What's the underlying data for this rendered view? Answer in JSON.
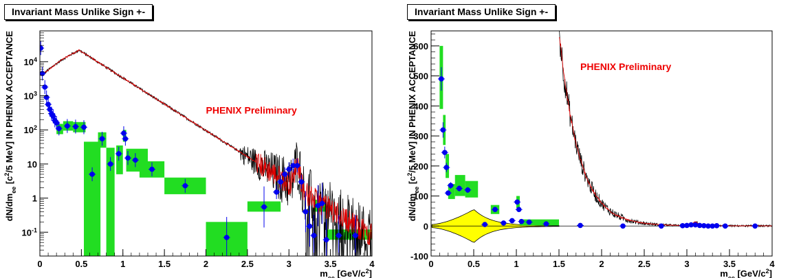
{
  "chart_data": [
    {
      "type": "scatter",
      "title": "Invariant Mass Unlike Sign +-",
      "xlabel": "m_ee [GeV/c^2]",
      "ylabel": "dN/dm_ee [c^2/5 MeV] IN PHENIX ACCEPTANCE",
      "log_y": true,
      "xlim": [
        0,
        4
      ],
      "ylim": [
        0.02,
        80000
      ],
      "x_ticks": [
        {
          "v": 0,
          "label": "0"
        },
        {
          "v": 0.5,
          "label": "0.5"
        },
        {
          "v": 1,
          "label": "1"
        },
        {
          "v": 1.5,
          "label": "1.5"
        },
        {
          "v": 2,
          "label": "2"
        },
        {
          "v": 2.5,
          "label": "2.5"
        },
        {
          "v": 3,
          "label": "3"
        },
        {
          "v": 3.5,
          "label": "3.5"
        },
        {
          "v": 4,
          "label": "4"
        }
      ],
      "y_ticks": [
        {
          "v": 0.1,
          "label": "10^-1"
        },
        {
          "v": 1,
          "label": "1"
        },
        {
          "v": 10,
          "label": "10"
        },
        {
          "v": 100,
          "label": "10^2"
        },
        {
          "v": 1000,
          "label": "10^3"
        },
        {
          "v": 10000,
          "label": "10^4"
        }
      ],
      "annotation": "PHENIX Preliminary",
      "colors": {
        "points": "#0000ee",
        "boxes": "#22dd22",
        "line_black": "#000000",
        "line_red": "#dd0000",
        "annotation": "#ee0000"
      },
      "series": [
        {
          "x": [
            0.01,
            0.03,
            0.06,
            0.08,
            0.1,
            0.12,
            0.14,
            0.16,
            0.18,
            0.2,
            0.23,
            0.33,
            0.43,
            0.53,
            0.63,
            0.75,
            0.85,
            0.95,
            1.01,
            1.03,
            1.06,
            1.15,
            1.35,
            1.75,
            2.25,
            2.7,
            2.85,
            2.9,
            2.95,
            3.0,
            3.05,
            3.1,
            3.15,
            3.2,
            3.25,
            3.3,
            3.35,
            3.4,
            3.45,
            3.6,
            3.8
          ],
          "y": [
            25000,
            4500,
            1800,
            900,
            560,
            400,
            300,
            250,
            190,
            160,
            110,
            130,
            125,
            120,
            5,
            55,
            10,
            20,
            80,
            55,
            15,
            13,
            7,
            2.3,
            0.07,
            0.55,
            1.5,
            3,
            5,
            7,
            9,
            9,
            3,
            0.4,
            0.15,
            0.08,
            0.6,
            0.7,
            0.06,
            0.08,
            0.08
          ]
        }
      ],
      "boxes": [
        {
          "x0": 0.2,
          "x1": 0.28,
          "y0": 75,
          "y1": 150
        },
        {
          "x0": 0.28,
          "x1": 0.4,
          "y0": 95,
          "y1": 180
        },
        {
          "x0": 0.4,
          "x1": 0.55,
          "y0": 85,
          "y1": 170
        },
        {
          "x0": 0.53,
          "x1": 0.73,
          "y0": 0.02,
          "y1": 45
        },
        {
          "x0": 0.7,
          "x1": 0.8,
          "y0": 30,
          "y1": 85
        },
        {
          "x0": 0.8,
          "x1": 0.9,
          "y0": 0.02,
          "y1": 30
        },
        {
          "x0": 0.92,
          "x1": 1.0,
          "y0": 5,
          "y1": 35
        },
        {
          "x0": 1.0,
          "x1": 1.04,
          "y0": 45,
          "y1": 100
        },
        {
          "x0": 1.04,
          "x1": 1.3,
          "y0": 6,
          "y1": 28
        },
        {
          "x0": 1.2,
          "x1": 1.5,
          "y0": 4,
          "y1": 12
        },
        {
          "x0": 1.5,
          "x1": 2.0,
          "y0": 1.3,
          "y1": 4
        },
        {
          "x0": 2.0,
          "x1": 2.5,
          "y0": 0.02,
          "y1": 0.2
        },
        {
          "x0": 2.5,
          "x1": 2.9,
          "y0": 0.4,
          "y1": 0.8
        },
        {
          "x0": 3.3,
          "x1": 3.45,
          "y0": 0.4,
          "y1": 0.9
        },
        {
          "x0": 3.45,
          "x1": 4.0,
          "y0": 0.06,
          "y1": 0.12
        }
      ]
    },
    {
      "type": "scatter",
      "title": "Invariant Mass Unlike Sign +-",
      "xlabel": "m_ee [GeV/c^2]",
      "ylabel": "dN/dm_ee [c^2/5 MeV] IN PHENIX ACCEPTANCE",
      "log_y": false,
      "xlim": [
        0,
        4
      ],
      "ylim": [
        -100,
        650
      ],
      "x_ticks": [
        {
          "v": 0,
          "label": "0"
        },
        {
          "v": 0.5,
          "label": "0.5"
        },
        {
          "v": 1,
          "label": "1"
        },
        {
          "v": 1.5,
          "label": "1.5"
        },
        {
          "v": 2,
          "label": "2"
        },
        {
          "v": 2.5,
          "label": "2.5"
        },
        {
          "v": 3,
          "label": "3"
        },
        {
          "v": 3.5,
          "label": "3.5"
        },
        {
          "v": 4,
          "label": "4"
        }
      ],
      "y_ticks": [
        {
          "v": -100,
          "label": "-100"
        },
        {
          "v": 0,
          "label": "0"
        },
        {
          "v": 100,
          "label": "100"
        },
        {
          "v": 200,
          "label": "200"
        },
        {
          "v": 300,
          "label": "300"
        },
        {
          "v": 400,
          "label": "400"
        },
        {
          "v": 500,
          "label": "500"
        },
        {
          "v": 600,
          "label": "600"
        }
      ],
      "annotation": "PHENIX Preliminary",
      "colors": {
        "points": "#0000ee",
        "boxes": "#22dd22",
        "band": "#ffff00",
        "line_black": "#000000",
        "line_red": "#dd0000",
        "annotation": "#ee0000"
      },
      "series": [
        {
          "x": [
            0.12,
            0.14,
            0.16,
            0.18,
            0.2,
            0.23,
            0.33,
            0.43,
            0.63,
            0.75,
            0.85,
            0.95,
            1.01,
            1.03,
            1.06,
            1.15,
            1.35,
            1.75,
            2.25,
            2.7,
            2.95,
            3.0,
            3.05,
            3.1,
            3.15,
            3.2,
            3.25,
            3.3,
            3.35,
            3.45,
            3.8
          ],
          "y": [
            490,
            320,
            245,
            195,
            110,
            135,
            125,
            120,
            5,
            55,
            10,
            18,
            80,
            55,
            15,
            13,
            7,
            2,
            0,
            0,
            1,
            2,
            4,
            4,
            2,
            1,
            0,
            0,
            1,
            0,
            0
          ]
        }
      ],
      "boxes": [
        {
          "x0": 0.1,
          "x1": 0.14,
          "y0": 390,
          "y1": 600
        },
        {
          "x0": 0.14,
          "x1": 0.17,
          "y0": 270,
          "y1": 370
        },
        {
          "x0": 0.17,
          "x1": 0.21,
          "y0": 160,
          "y1": 240
        },
        {
          "x0": 0.2,
          "x1": 0.28,
          "y0": 90,
          "y1": 140
        },
        {
          "x0": 0.28,
          "x1": 0.4,
          "y0": 100,
          "y1": 170
        },
        {
          "x0": 0.4,
          "x1": 0.55,
          "y0": 95,
          "y1": 150
        },
        {
          "x0": 0.7,
          "x1": 0.8,
          "y0": 40,
          "y1": 70
        },
        {
          "x0": 1.0,
          "x1": 1.04,
          "y0": 60,
          "y1": 100
        },
        {
          "x0": 1.04,
          "x1": 1.5,
          "y0": 2,
          "y1": 22
        }
      ]
    }
  ]
}
